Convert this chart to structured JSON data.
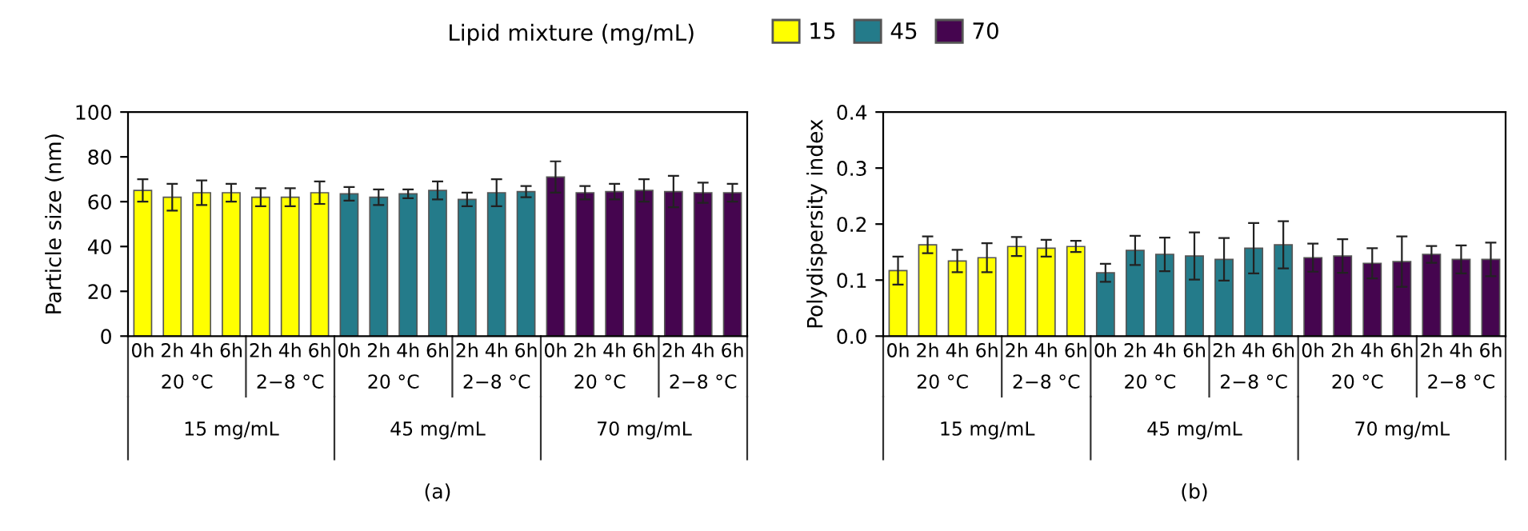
{
  "chart_data": [
    {
      "type": "bar",
      "ylabel": "Particle size (nm)",
      "legend_title": "Lipid mixture (mg/mL)",
      "legend": "top",
      "categories": [
        "0h",
        "2h",
        "4h",
        "6h",
        "2h",
        "4h",
        "6h",
        "0h",
        "2h",
        "4h",
        "6h",
        "2h",
        "4h",
        "6h",
        "0h",
        "2h",
        "4h",
        "6h",
        "2h",
        "4h",
        "6h"
      ],
      "series": [
        {
          "name": "15",
          "color": "#ffff00",
          "values": [
            65,
            62,
            64,
            64,
            62,
            62,
            64,
            null,
            null,
            null,
            null,
            null,
            null,
            null,
            null,
            null,
            null,
            null,
            null,
            null,
            null
          ],
          "errors": [
            5,
            6,
            5.5,
            4,
            4,
            4,
            5,
            null,
            null,
            null,
            null,
            null,
            null,
            null,
            null,
            null,
            null,
            null,
            null,
            null,
            null
          ]
        },
        {
          "name": "45",
          "color": "#247b8a",
          "values": [
            null,
            null,
            null,
            null,
            null,
            null,
            null,
            63.5,
            62,
            63.5,
            65,
            61,
            64,
            64.5,
            null,
            null,
            null,
            null,
            null,
            null,
            null
          ],
          "errors": [
            null,
            null,
            null,
            null,
            null,
            null,
            null,
            3,
            3.5,
            2,
            4,
            3,
            6,
            2.5,
            null,
            null,
            null,
            null,
            null,
            null,
            null
          ]
        },
        {
          "name": "70",
          "color": "#45054f",
          "values": [
            null,
            null,
            null,
            null,
            null,
            null,
            null,
            null,
            null,
            null,
            null,
            null,
            null,
            null,
            71,
            64,
            64.5,
            65,
            64.5,
            64,
            64
          ],
          "errors": [
            null,
            null,
            null,
            null,
            null,
            null,
            null,
            null,
            null,
            null,
            null,
            null,
            null,
            null,
            7,
            3,
            3.5,
            5,
            7,
            4.5,
            4
          ]
        }
      ],
      "ylim": [
        0,
        100
      ],
      "yticks": [
        0,
        20,
        40,
        60,
        80,
        100
      ],
      "annotations": [
        "20 °C",
        "2−8 °C",
        "20 °C",
        "2−8 °C",
        "20 °C",
        "2−8 °C",
        "15 mg/mL",
        "45 mg/mL",
        "70 mg/mL",
        "(a)"
      ]
    },
    {
      "type": "bar",
      "ylabel": "Polydispersity index",
      "categories": [
        "0h",
        "2h",
        "4h",
        "6h",
        "2h",
        "4h",
        "6h",
        "0h",
        "2h",
        "4h",
        "6h",
        "2h",
        "4h",
        "6h",
        "0h",
        "2h",
        "4h",
        "6h",
        "2h",
        "4h",
        "6h"
      ],
      "series": [
        {
          "color": "#ffff00",
          "values": [
            0.117,
            0.163,
            0.134,
            0.14,
            0.16,
            0.157,
            0.16,
            null,
            null,
            null,
            null,
            null,
            null,
            null,
            null,
            null,
            null,
            null,
            null,
            null,
            null
          ],
          "errors": [
            0.025,
            0.015,
            0.02,
            0.026,
            0.017,
            0.015,
            0.01,
            null,
            null,
            null,
            null,
            null,
            null,
            null,
            null,
            null,
            null,
            null,
            null,
            null,
            null
          ]
        },
        {
          "color": "#247b8a",
          "values": [
            null,
            null,
            null,
            null,
            null,
            null,
            null,
            0.113,
            0.153,
            0.146,
            0.143,
            0.137,
            0.157,
            0.163,
            null,
            null,
            null,
            null,
            null,
            null,
            null
          ],
          "errors": [
            null,
            null,
            null,
            null,
            null,
            null,
            null,
            0.016,
            0.026,
            0.03,
            0.042,
            0.038,
            0.045,
            0.042,
            null,
            null,
            null,
            null,
            null,
            null,
            null
          ]
        },
        {
          "color": "#45054f",
          "values": [
            null,
            null,
            null,
            null,
            null,
            null,
            null,
            null,
            null,
            null,
            null,
            null,
            null,
            null,
            0.14,
            0.143,
            0.13,
            0.133,
            0.146,
            0.137,
            0.137
          ],
          "errors": [
            null,
            null,
            null,
            null,
            null,
            null,
            null,
            null,
            null,
            null,
            null,
            null,
            null,
            null,
            0.025,
            0.03,
            0.027,
            0.045,
            0.015,
            0.025,
            0.03
          ]
        }
      ],
      "ylim": [
        0,
        0.4
      ],
      "yticks": [
        {
          "value": 0,
          "label": "0.0"
        },
        0.1,
        0.2,
        0.3,
        0.4
      ],
      "annotations": [
        "20 °C",
        "2−8 °C",
        "20 °C",
        "2−8 °C",
        "20 °C",
        "2−8 °C",
        "15 mg/mL",
        "45 mg/mL",
        "70 mg/mL",
        "(b)"
      ]
    }
  ]
}
